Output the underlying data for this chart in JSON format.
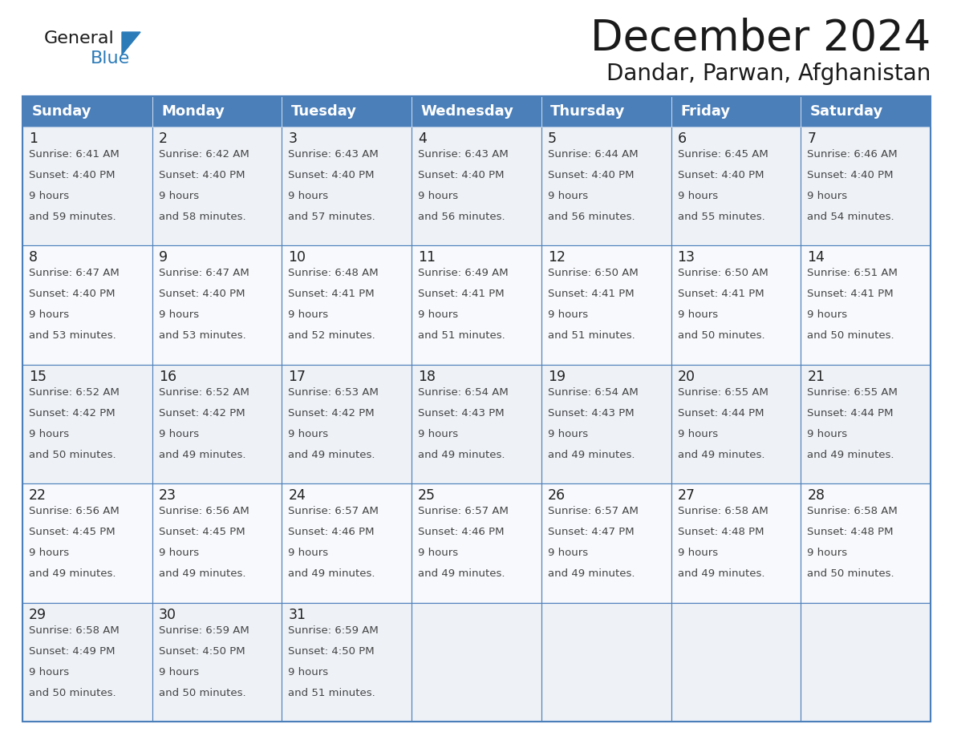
{
  "title": "December 2024",
  "subtitle": "Dandar, Parwan, Afghanistan",
  "header_bg": "#4b7fba",
  "header_text_color": "#FFFFFF",
  "days_of_week": [
    "Sunday",
    "Monday",
    "Tuesday",
    "Wednesday",
    "Thursday",
    "Friday",
    "Saturday"
  ],
  "cell_line_color": "#4b7fba",
  "cell_bg": "#f0f4f8",
  "last_row_bg": "#FFFFFF",
  "calendar": [
    [
      {
        "day": 1,
        "sunrise": "6:41 AM",
        "sunset": "4:40 PM",
        "daylight": "9 hours",
        "daylight2": "and 59 minutes."
      },
      {
        "day": 2,
        "sunrise": "6:42 AM",
        "sunset": "4:40 PM",
        "daylight": "9 hours",
        "daylight2": "and 58 minutes."
      },
      {
        "day": 3,
        "sunrise": "6:43 AM",
        "sunset": "4:40 PM",
        "daylight": "9 hours",
        "daylight2": "and 57 minutes."
      },
      {
        "day": 4,
        "sunrise": "6:43 AM",
        "sunset": "4:40 PM",
        "daylight": "9 hours",
        "daylight2": "and 56 minutes."
      },
      {
        "day": 5,
        "sunrise": "6:44 AM",
        "sunset": "4:40 PM",
        "daylight": "9 hours",
        "daylight2": "and 56 minutes."
      },
      {
        "day": 6,
        "sunrise": "6:45 AM",
        "sunset": "4:40 PM",
        "daylight": "9 hours",
        "daylight2": "and 55 minutes."
      },
      {
        "day": 7,
        "sunrise": "6:46 AM",
        "sunset": "4:40 PM",
        "daylight": "9 hours",
        "daylight2": "and 54 minutes."
      }
    ],
    [
      {
        "day": 8,
        "sunrise": "6:47 AM",
        "sunset": "4:40 PM",
        "daylight": "9 hours",
        "daylight2": "and 53 minutes."
      },
      {
        "day": 9,
        "sunrise": "6:47 AM",
        "sunset": "4:40 PM",
        "daylight": "9 hours",
        "daylight2": "and 53 minutes."
      },
      {
        "day": 10,
        "sunrise": "6:48 AM",
        "sunset": "4:41 PM",
        "daylight": "9 hours",
        "daylight2": "and 52 minutes."
      },
      {
        "day": 11,
        "sunrise": "6:49 AM",
        "sunset": "4:41 PM",
        "daylight": "9 hours",
        "daylight2": "and 51 minutes."
      },
      {
        "day": 12,
        "sunrise": "6:50 AM",
        "sunset": "4:41 PM",
        "daylight": "9 hours",
        "daylight2": "and 51 minutes."
      },
      {
        "day": 13,
        "sunrise": "6:50 AM",
        "sunset": "4:41 PM",
        "daylight": "9 hours",
        "daylight2": "and 50 minutes."
      },
      {
        "day": 14,
        "sunrise": "6:51 AM",
        "sunset": "4:41 PM",
        "daylight": "9 hours",
        "daylight2": "and 50 minutes."
      }
    ],
    [
      {
        "day": 15,
        "sunrise": "6:52 AM",
        "sunset": "4:42 PM",
        "daylight": "9 hours",
        "daylight2": "and 50 minutes."
      },
      {
        "day": 16,
        "sunrise": "6:52 AM",
        "sunset": "4:42 PM",
        "daylight": "9 hours",
        "daylight2": "and 49 minutes."
      },
      {
        "day": 17,
        "sunrise": "6:53 AM",
        "sunset": "4:42 PM",
        "daylight": "9 hours",
        "daylight2": "and 49 minutes."
      },
      {
        "day": 18,
        "sunrise": "6:54 AM",
        "sunset": "4:43 PM",
        "daylight": "9 hours",
        "daylight2": "and 49 minutes."
      },
      {
        "day": 19,
        "sunrise": "6:54 AM",
        "sunset": "4:43 PM",
        "daylight": "9 hours",
        "daylight2": "and 49 minutes."
      },
      {
        "day": 20,
        "sunrise": "6:55 AM",
        "sunset": "4:44 PM",
        "daylight": "9 hours",
        "daylight2": "and 49 minutes."
      },
      {
        "day": 21,
        "sunrise": "6:55 AM",
        "sunset": "4:44 PM",
        "daylight": "9 hours",
        "daylight2": "and 49 minutes."
      }
    ],
    [
      {
        "day": 22,
        "sunrise": "6:56 AM",
        "sunset": "4:45 PM",
        "daylight": "9 hours",
        "daylight2": "and 49 minutes."
      },
      {
        "day": 23,
        "sunrise": "6:56 AM",
        "sunset": "4:45 PM",
        "daylight": "9 hours",
        "daylight2": "and 49 minutes."
      },
      {
        "day": 24,
        "sunrise": "6:57 AM",
        "sunset": "4:46 PM",
        "daylight": "9 hours",
        "daylight2": "and 49 minutes."
      },
      {
        "day": 25,
        "sunrise": "6:57 AM",
        "sunset": "4:46 PM",
        "daylight": "9 hours",
        "daylight2": "and 49 minutes."
      },
      {
        "day": 26,
        "sunrise": "6:57 AM",
        "sunset": "4:47 PM",
        "daylight": "9 hours",
        "daylight2": "and 49 minutes."
      },
      {
        "day": 27,
        "sunrise": "6:58 AM",
        "sunset": "4:48 PM",
        "daylight": "9 hours",
        "daylight2": "and 49 minutes."
      },
      {
        "day": 28,
        "sunrise": "6:58 AM",
        "sunset": "4:48 PM",
        "daylight": "9 hours",
        "daylight2": "and 50 minutes."
      }
    ],
    [
      {
        "day": 29,
        "sunrise": "6:58 AM",
        "sunset": "4:49 PM",
        "daylight": "9 hours",
        "daylight2": "and 50 minutes."
      },
      {
        "day": 30,
        "sunrise": "6:59 AM",
        "sunset": "4:50 PM",
        "daylight": "9 hours",
        "daylight2": "and 50 minutes."
      },
      {
        "day": 31,
        "sunrise": "6:59 AM",
        "sunset": "4:50 PM",
        "daylight": "9 hours",
        "daylight2": "and 51 minutes."
      },
      null,
      null,
      null,
      null
    ]
  ]
}
